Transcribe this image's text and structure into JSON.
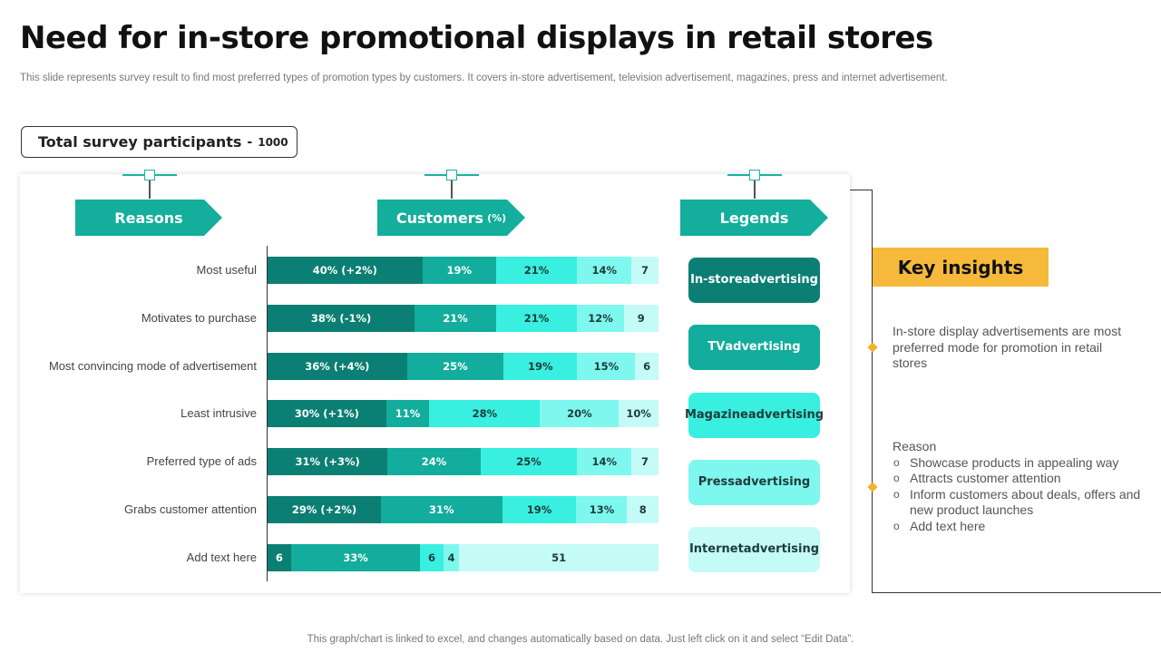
{
  "title": "Need for in-store promotional displays in retail stores",
  "subtitle": "This slide represents survey result to find most preferred types of promotion types by customers. It covers in-store advertisement, television advertisement, magazines, press and internet advertisement.",
  "participants": {
    "label": "Total survey participants",
    "separator": "-",
    "value": "1000"
  },
  "headers": {
    "reasons": "Reasons",
    "customers": "Customers",
    "customers_unit": "(%)",
    "legends": "Legends"
  },
  "colors": {
    "teal": "#14ae9c",
    "instore": "#0b7f73",
    "tv": "#12ad9c",
    "magazine": "#39efe0",
    "press": "#7ef7ee",
    "internet": "#c4fbf6",
    "accent": "#f6b93b"
  },
  "legend_items": [
    {
      "label": "In-store advertising",
      "color": "#0b7f73",
      "text_color": "#ffffff"
    },
    {
      "label": "TV advertising",
      "color": "#12ad9c",
      "text_color": "#ffffff"
    },
    {
      "label": "Magazine advertising",
      "color": "#39efe0",
      "text_color": "#1e3b3a"
    },
    {
      "label": "Press advertising",
      "color": "#7ef7ee",
      "text_color": "#1e3b3a"
    },
    {
      "label": "Internet advertising",
      "color": "#c4fbf6",
      "text_color": "#1e3b3a"
    }
  ],
  "chart_data": {
    "type": "bar",
    "orientation": "horizontal",
    "stacked": true,
    "categories": [
      "Most useful",
      "Motivates to purchase",
      "Most convincing mode of advertisement",
      "Least intrusive",
      "Preferred type of ads",
      "Grabs customer attention",
      "Add text here"
    ],
    "series": [
      {
        "name": "In-store advertising",
        "values": [
          40,
          38,
          36,
          30,
          31,
          29,
          6
        ],
        "labels": [
          "40% (+2%)",
          "38% (-1%)",
          "36% (+4%)",
          "30% (+1%)",
          "31% (+3%)",
          "29% (+2%)",
          "6"
        ]
      },
      {
        "name": "TV advertising",
        "values": [
          19,
          21,
          25,
          11,
          24,
          31,
          33
        ],
        "labels": [
          "19%",
          "21%",
          "25%",
          "11%",
          "24%",
          "31%",
          "33%"
        ]
      },
      {
        "name": "Magazine advertising",
        "values": [
          21,
          21,
          19,
          28,
          25,
          19,
          6
        ],
        "labels": [
          "21%",
          "21%",
          "19%",
          "28%",
          "25%",
          "19%",
          "6"
        ]
      },
      {
        "name": "Press advertising",
        "values": [
          14,
          12,
          15,
          20,
          14,
          13,
          4
        ],
        "labels": [
          "14%",
          "12%",
          "15%",
          "20%",
          "14%",
          "13%",
          "4"
        ]
      },
      {
        "name": "Internet advertising",
        "values": [
          7,
          9,
          6,
          10,
          7,
          8,
          51
        ],
        "labels": [
          "7",
          "9",
          "6",
          "10%",
          "7",
          "8",
          "51"
        ]
      }
    ]
  },
  "key_insights": {
    "heading": "Key insights",
    "insight": "In-store display advertisements are most preferred mode for promotion in retail stores",
    "reason_title": "Reason",
    "reasons": [
      "Showcase products in appealing way",
      "Attracts customer attention",
      "Inform customers about deals, offers and new product launches",
      "Add text here"
    ]
  },
  "footer": "This graph/chart is linked to excel, and changes automatically based on data. Just left click on it and select “Edit Data”."
}
